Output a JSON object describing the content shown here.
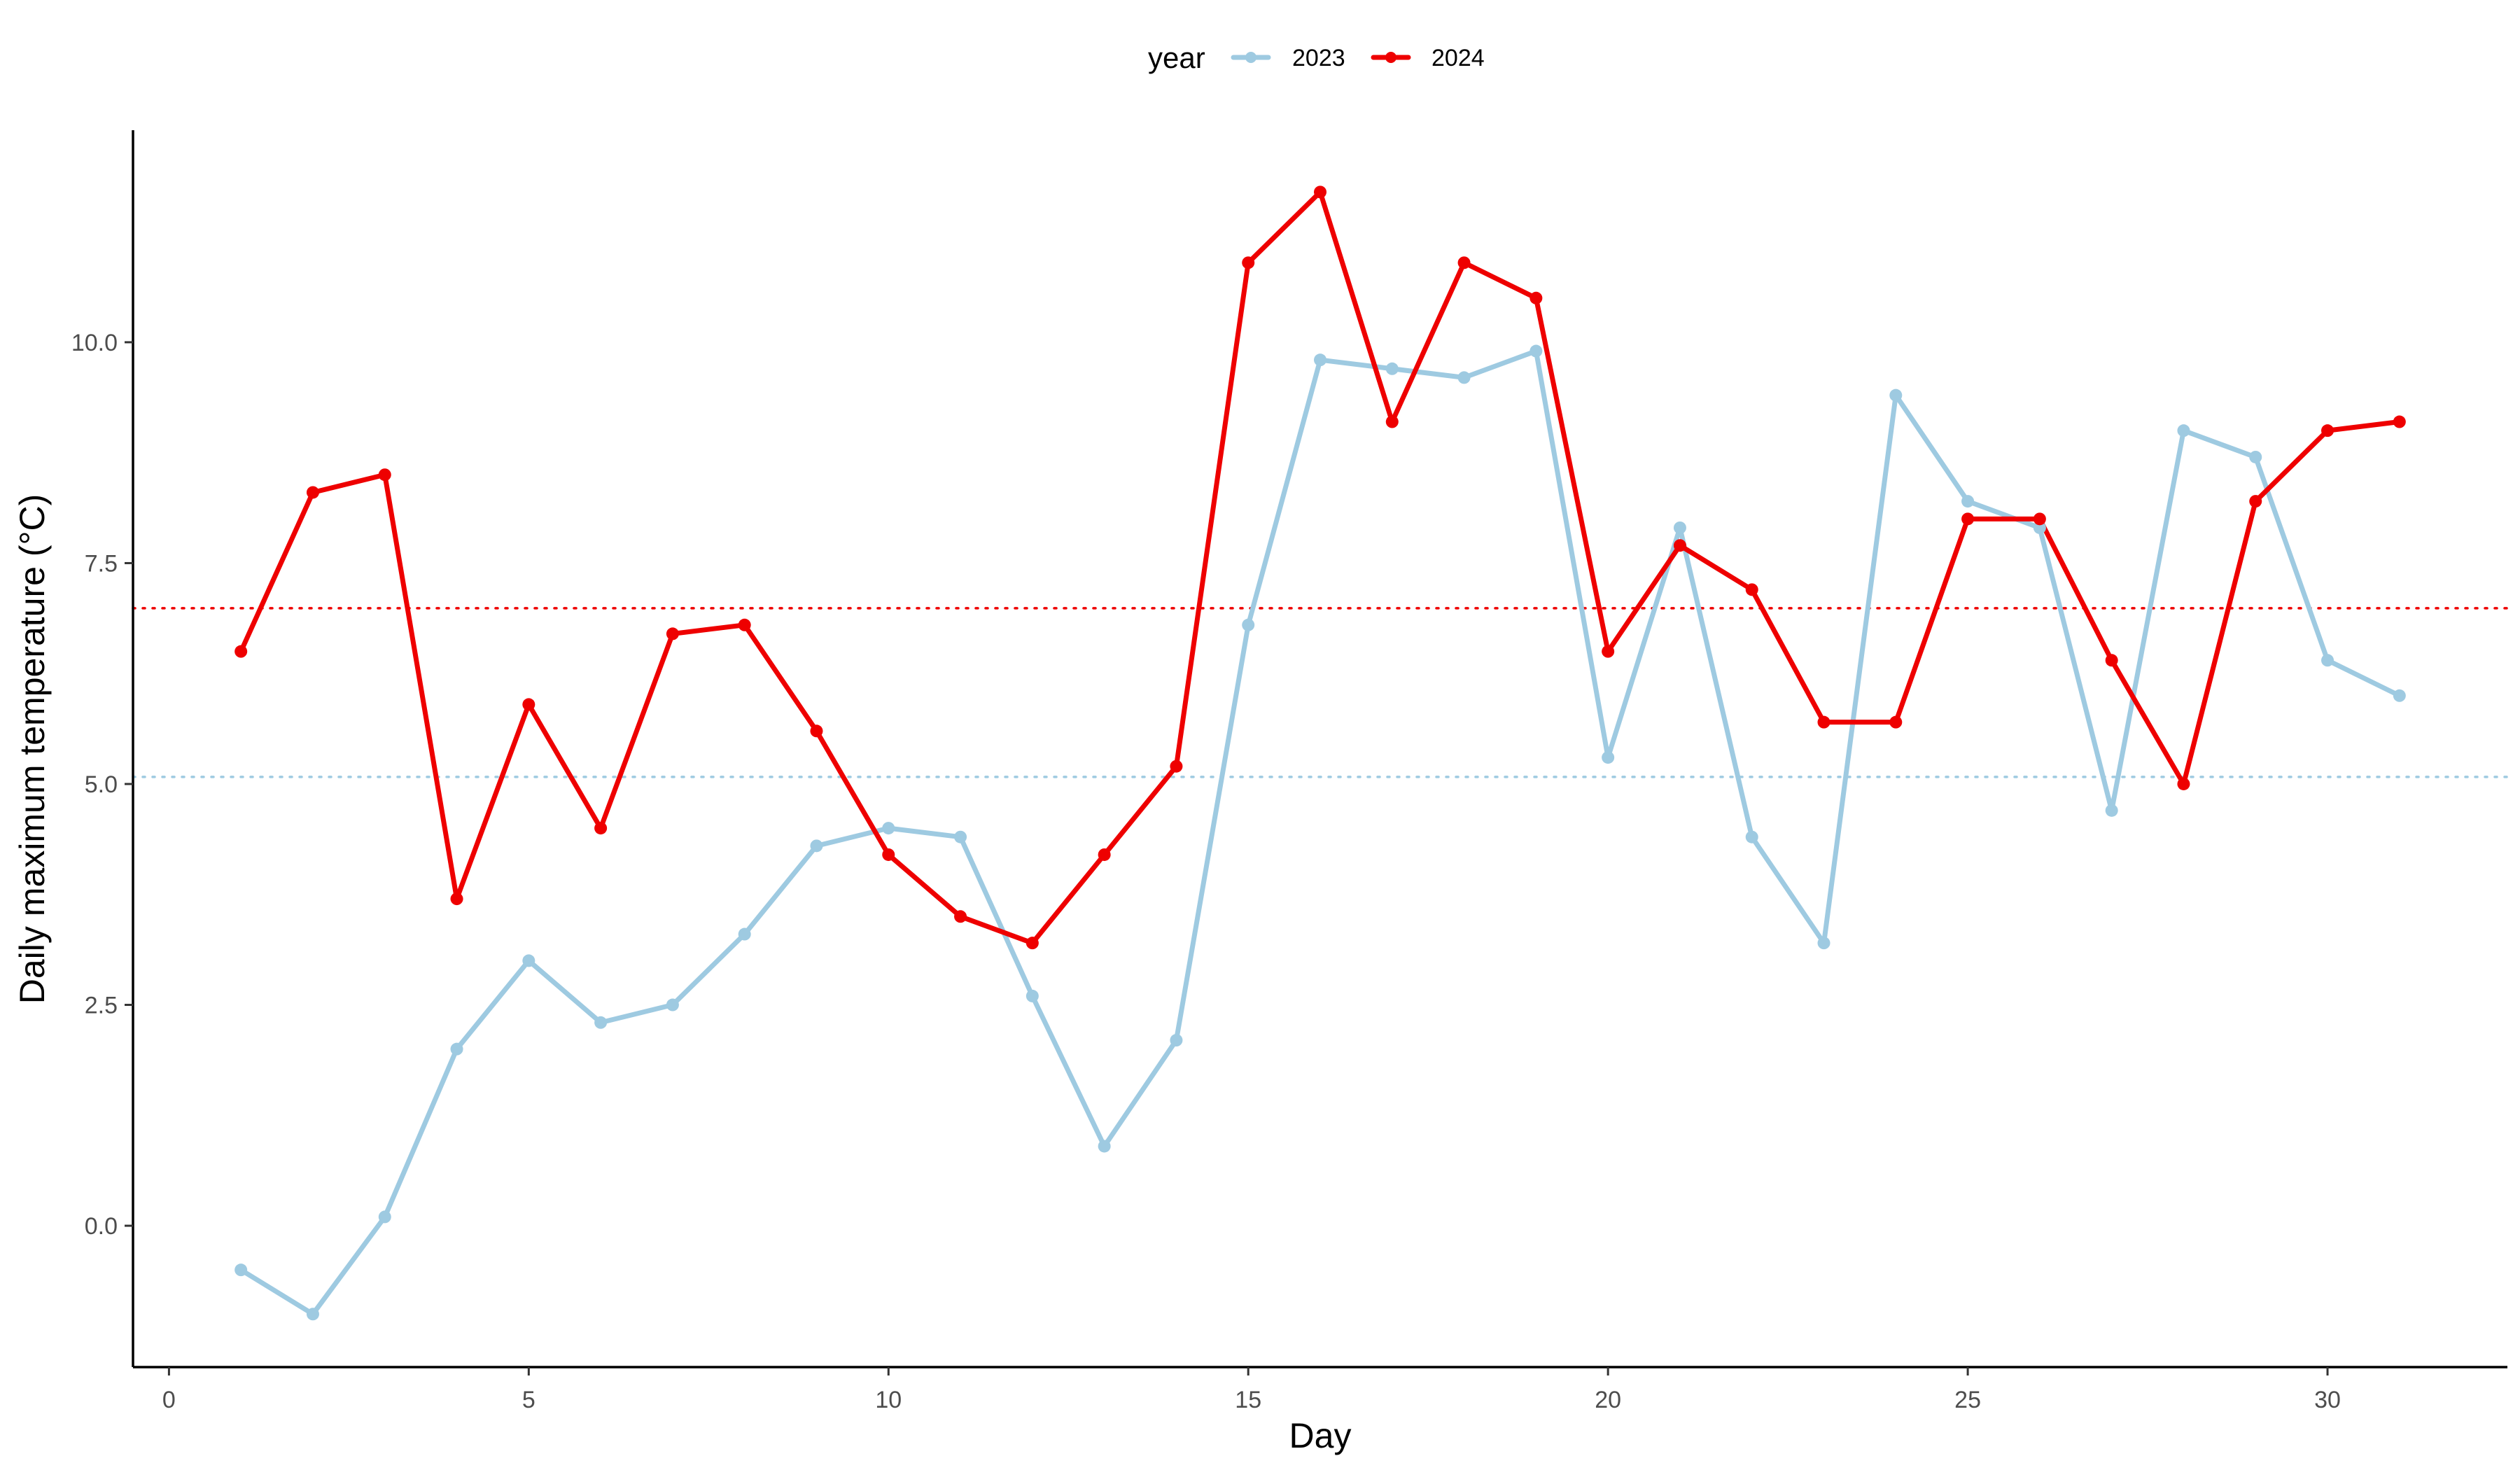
{
  "chart_data": {
    "type": "line",
    "xlabel": "Day",
    "ylabel": "Daily maximum temperature (°C)",
    "xlim": [
      -0.5,
      32.5
    ],
    "ylim": [
      -1.6,
      12.4
    ],
    "x_ticks": [
      0,
      5,
      10,
      15,
      20,
      25,
      30
    ],
    "x_tick_labels": [
      "0",
      "5",
      "10",
      "15",
      "20",
      "25",
      "30"
    ],
    "y_ticks": [
      0,
      2.5,
      5,
      7.5,
      10
    ],
    "y_tick_labels": [
      "0.0",
      "2.5",
      "5.0",
      "7.5",
      "10.0"
    ],
    "grid": false,
    "legend": {
      "title": "year",
      "position": "top"
    },
    "x": [
      1,
      2,
      3,
      4,
      5,
      6,
      7,
      8,
      9,
      10,
      11,
      12,
      13,
      14,
      15,
      16,
      17,
      18,
      19,
      20,
      21,
      22,
      23,
      24,
      25,
      26,
      27,
      28,
      29,
      30,
      31
    ],
    "series": [
      {
        "name": "2023",
        "color": "#9ecae1",
        "values": [
          -0.5,
          -1.0,
          0.1,
          2.0,
          3.0,
          2.3,
          2.5,
          3.3,
          4.3,
          4.5,
          4.4,
          2.6,
          0.9,
          2.1,
          6.8,
          9.8,
          9.7,
          9.6,
          9.9,
          5.3,
          7.9,
          4.4,
          3.2,
          9.4,
          8.2,
          7.9,
          4.7,
          9.0,
          8.7,
          6.4,
          6.0
        ],
        "mean_line": 5.08
      },
      {
        "name": "2024",
        "color": "#ee0000",
        "values": [
          6.5,
          8.3,
          8.5,
          3.7,
          5.9,
          4.5,
          6.7,
          6.8,
          5.6,
          4.2,
          3.5,
          3.2,
          4.2,
          5.2,
          10.9,
          11.7,
          9.1,
          10.9,
          10.5,
          6.5,
          7.7,
          7.2,
          5.7,
          5.7,
          8.0,
          8.0,
          6.4,
          5.0,
          8.2,
          9.0,
          9.1
        ],
        "mean_line": 6.99
      }
    ]
  }
}
